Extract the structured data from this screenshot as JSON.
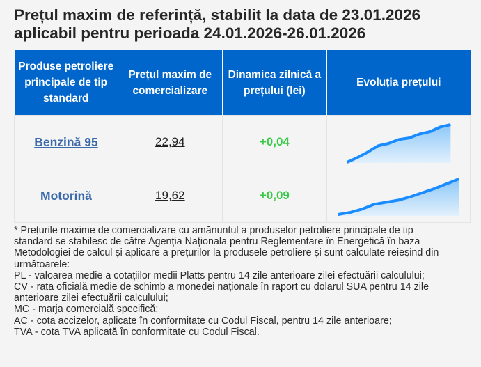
{
  "title_lines": [
    "Prețul maxim de referință, stabilit la data de 23.01.2026",
    "aplicabil pentru perioada 24.01.2026-26.01.2026"
  ],
  "table": {
    "headers": [
      "Produse petroliere principale de tip standard",
      "Prețul maxim de comercializare",
      "Dinamica zilnică a prețului (lei)",
      "Evoluția prețului"
    ],
    "rows": [
      {
        "product": "Benzină 95",
        "price": "22,94",
        "dynamic": "+0,04",
        "trend": [
          0,
          6,
          13,
          21,
          24,
          29,
          31,
          36,
          39,
          45,
          48
        ]
      },
      {
        "product": "Motorină",
        "price": "19,62",
        "dynamic": "+0,09",
        "trend": [
          0,
          3,
          8,
          15,
          18,
          21,
          26,
          32,
          38,
          45,
          52
        ]
      }
    ]
  },
  "colors": {
    "header_bg": "#0066cc",
    "link": "#3b6aaa",
    "positive": "#39c946",
    "sparkline": "#1a8cff"
  },
  "footnote_lines": [
    "* Prețurile maxime de comercializare cu amănuntul a produselor petroliere principale de tip",
    "standard se stabilesc de către Agenția Naționala pentru Reglementare în Energetică în baza",
    "Metodologiei de calcul și aplicare a prețurilor la produsele petroliere și sunt calculate reieșind din",
    "următoarele:",
    "PL - valoarea medie a cotațiilor medii Platts pentru 14 zile anterioare zilei efectuării calculului;",
    "CV - rata oficială medie de schimb a monedei naționale în raport cu dolarul SUA pentru 14 zile",
    "anterioare zilei efectuării calculului;",
    "MC - marja comercială specifică;",
    "AC - cota accizelor, aplicate în conformitate cu Codul Fiscal, pentru 14 zile anterioare;",
    "TVA - cota TVA aplicată în conformitate cu Codul Fiscal."
  ]
}
